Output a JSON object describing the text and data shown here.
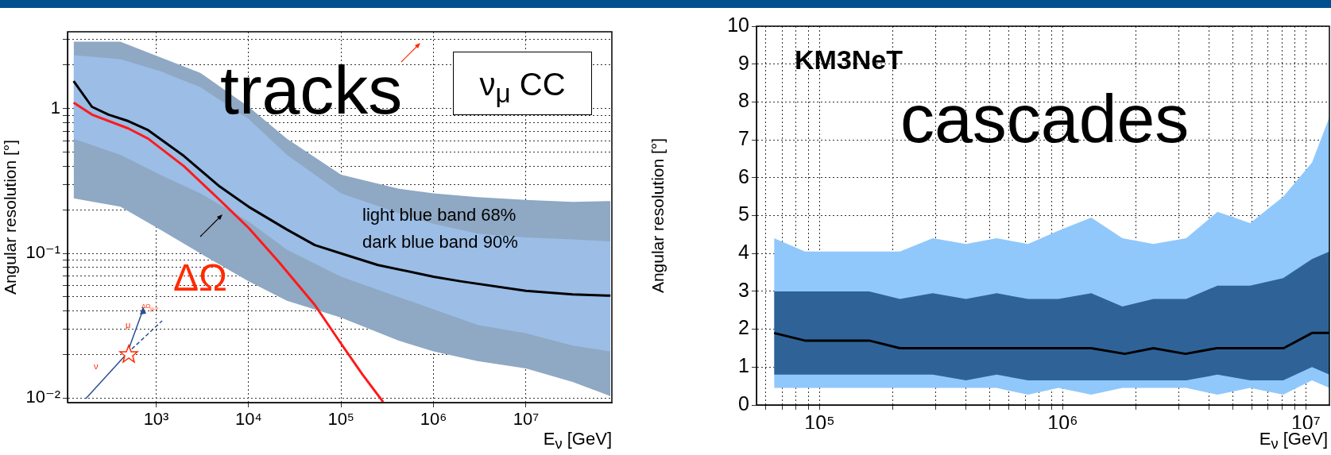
{
  "chart_data": [
    {
      "type": "line",
      "xlabel": "E$_{ν}$ [GeV]",
      "ylabel": "Angular resolution [°]",
      "log": "xy",
      "xlim": [
        110,
        85000000
      ],
      "ylim": [
        0.0093,
        3.4
      ],
      "xticks": [
        {
          "value": 1000,
          "label": "10³"
        },
        {
          "value": 10000,
          "label": "10⁴"
        },
        {
          "value": 100000,
          "label": "10⁵"
        },
        {
          "value": 1000000,
          "label": "10⁶"
        },
        {
          "value": 10000000,
          "label": "10⁷"
        }
      ],
      "yticks": [
        {
          "value": 0.01,
          "label": "10⁻²"
        },
        {
          "value": 0.02,
          "label": null
        },
        {
          "value": 0.03,
          "label": null
        },
        {
          "value": 0.04,
          "label": null
        },
        {
          "value": 0.05,
          "label": null
        },
        {
          "value": 0.06,
          "label": null
        },
        {
          "value": 0.07,
          "label": null
        },
        {
          "value": 0.08,
          "label": null
        },
        {
          "value": 0.09,
          "label": null
        },
        {
          "value": 0.1,
          "label": "10⁻¹"
        },
        {
          "value": 0.2,
          "label": null
        },
        {
          "value": 0.3,
          "label": null
        },
        {
          "value": 0.4,
          "label": null
        },
        {
          "value": 0.5,
          "label": null
        },
        {
          "value": 0.6,
          "label": null
        },
        {
          "value": 0.7,
          "label": null
        },
        {
          "value": 0.8,
          "label": null
        },
        {
          "value": 0.9,
          "label": null
        },
        1,
        {
          "value": 2,
          "label": null
        },
        {
          "value": 3,
          "label": null
        }
      ],
      "grid": true,
      "marker": "none",
      "line_style": "solid",
      "annotations": [
        "tracks",
        "ν$_{μ}$ CC",
        "light blue band 68%",
        "dark blue band 90%",
        "ΔΩ",
        "ν",
        "μ",
        "ΔΩ$_{μ-ν}$"
      ],
      "series": [
        {
          "color": "#8fa8c4",
          "x": [
            128,
            410,
            1100,
            3000,
            10000,
            26000,
            100000,
            415000,
            1000000,
            3000000,
            10000000,
            32000000,
            82000000
          ],
          "values": [
            null,
            null,
            null,
            null,
            null,
            null,
            null,
            null,
            null,
            null,
            null,
            null,
            null
          ],
          "lower": [
            0.24,
            0.21,
            0.146,
            0.1,
            0.064,
            0.047,
            0.036,
            0.025,
            0.021,
            0.018,
            0.016,
            0.0129,
            0.0103
          ],
          "upper": [
            2.9,
            2.9,
            2.27,
            1.77,
            1.03,
            0.62,
            0.35,
            0.28,
            0.26,
            0.245,
            0.234,
            0.227,
            0.23
          ]
        },
        {
          "color": "#9bbde6",
          "x": [
            128,
            410,
            1100,
            3000,
            10000,
            26000,
            100000,
            415000,
            1000000,
            3000000,
            10000000,
            32000000,
            82000000
          ],
          "values": [
            null,
            null,
            null,
            null,
            null,
            null,
            null,
            null,
            null,
            null,
            null,
            null,
            null
          ],
          "lower": [
            0.62,
            0.48,
            0.35,
            0.26,
            0.166,
            0.106,
            0.069,
            0.05,
            0.041,
            0.032,
            0.028,
            0.023,
            0.021
          ],
          "upper": [
            2.34,
            2.2,
            1.82,
            1.41,
            0.85,
            0.48,
            0.26,
            0.19,
            0.16,
            0.137,
            0.129,
            0.125,
            0.121
          ]
        },
        {
          "color": "#000000",
          "x": [
            128,
            202,
            305,
            500,
            820,
            2000,
            4860,
            10000,
            26000,
            52000,
            99000,
            250000,
            1000000,
            2000000,
            10000000,
            32000000,
            82000000
          ],
          "values": [
            1.55,
            1.03,
            0.91,
            0.82,
            0.71,
            0.47,
            0.29,
            0.21,
            0.146,
            0.114,
            0.1,
            0.083,
            0.069,
            0.064,
            0.055,
            0.052,
            0.051
          ]
        },
        {
          "color": "#ff1a1a",
          "x": [
            128,
            202,
            500,
            820,
            2000,
            4860,
            10000,
            21000,
            52000,
            99000,
            170000,
            285000
          ],
          "values": [
            1.1,
            0.91,
            0.73,
            0.62,
            0.4,
            0.234,
            0.15,
            0.088,
            0.044,
            0.024,
            0.0146,
            0.0094
          ]
        }
      ]
    },
    {
      "type": "line",
      "xlabel": "E$_{ν}$ [GeV]",
      "ylabel": "Angular resolution [°]",
      "log": "x",
      "xlim": [
        55000,
        12500000
      ],
      "ylim": [
        0,
        10
      ],
      "xticks": [
        {
          "value": 60000,
          "label": null
        },
        {
          "value": 70000,
          "label": null
        },
        {
          "value": 80000,
          "label": null
        },
        {
          "value": 90000,
          "label": null
        },
        {
          "value": 100000,
          "label": "10⁵"
        },
        {
          "value": 200000,
          "label": null
        },
        {
          "value": 300000,
          "label": null
        },
        {
          "value": 400000,
          "label": null
        },
        {
          "value": 500000,
          "label": null
        },
        {
          "value": 600000,
          "label": null
        },
        {
          "value": 700000,
          "label": null
        },
        {
          "value": 800000,
          "label": null
        },
        {
          "value": 900000,
          "label": null
        },
        {
          "value": 1000000,
          "label": "10⁶"
        },
        {
          "value": 2000000,
          "label": null
        },
        {
          "value": 3000000,
          "label": null
        },
        {
          "value": 4000000,
          "label": null
        },
        {
          "value": 5000000,
          "label": null
        },
        {
          "value": 6000000,
          "label": null
        },
        {
          "value": 7000000,
          "label": null
        },
        {
          "value": 8000000,
          "label": null
        },
        {
          "value": 9000000,
          "label": null
        },
        {
          "value": 10000000,
          "label": "10⁷"
        }
      ],
      "yticks": [
        0,
        1,
        2,
        3,
        4,
        5,
        6,
        7,
        8,
        9,
        10
      ],
      "grid": true,
      "marker": "none",
      "line_style": "solid",
      "annotations": [
        "KM3NeT",
        "cascades"
      ],
      "series": [
        {
          "color": "#90c8fb",
          "x": [
            65000,
            87000,
            119000,
            160000,
            214000,
            292000,
            400000,
            535000,
            720000,
            960000,
            1310000,
            1760000,
            2360000,
            3220000,
            4330000,
            5900000,
            8070000,
            10600000,
            12500000
          ],
          "values": [
            null,
            null,
            null,
            null,
            null,
            null,
            null,
            null,
            null,
            null,
            null,
            null,
            null,
            null,
            null,
            null,
            null,
            null,
            null
          ],
          "lower": [
            0.45,
            0.45,
            0.45,
            0.45,
            0.45,
            0.45,
            0.45,
            0.45,
            0.27,
            0.45,
            0.27,
            0.45,
            0.45,
            0.45,
            0.27,
            0.45,
            0.27,
            0.65,
            0.45
          ],
          "upper": [
            4.4,
            4.05,
            4.05,
            4.05,
            4.05,
            4.4,
            4.25,
            4.4,
            4.25,
            4.6,
            4.95,
            4.4,
            4.25,
            4.4,
            5.1,
            4.8,
            5.5,
            6.4,
            7.6
          ]
        },
        {
          "color": "#2f6398",
          "x": [
            65000,
            87000,
            119000,
            160000,
            214000,
            292000,
            400000,
            535000,
            720000,
            960000,
            1310000,
            1760000,
            2360000,
            3220000,
            4330000,
            5900000,
            8070000,
            10600000,
            12500000
          ],
          "values": [
            null,
            null,
            null,
            null,
            null,
            null,
            null,
            null,
            null,
            null,
            null,
            null,
            null,
            null,
            null,
            null,
            null,
            null,
            null
          ],
          "lower": [
            0.8,
            0.8,
            0.8,
            0.8,
            0.8,
            0.8,
            0.65,
            0.8,
            0.65,
            0.65,
            0.65,
            0.65,
            0.65,
            0.65,
            0.8,
            0.65,
            0.65,
            1.0,
            0.8
          ],
          "upper": [
            3.0,
            3.0,
            3.0,
            3.0,
            2.8,
            2.95,
            2.8,
            2.95,
            2.8,
            2.8,
            2.95,
            2.6,
            2.8,
            2.8,
            3.15,
            3.15,
            3.35,
            3.85,
            4.05
          ]
        },
        {
          "color": "#000000",
          "x": [
            65000,
            87000,
            160000,
            214000,
            1310000,
            1800000,
            2360000,
            3200000,
            4300000,
            8100000,
            10600000,
            12500000
          ],
          "values": [
            1.9,
            1.7,
            1.7,
            1.5,
            1.5,
            1.35,
            1.5,
            1.35,
            1.5,
            1.5,
            1.9,
            1.9
          ]
        }
      ]
    }
  ]
}
